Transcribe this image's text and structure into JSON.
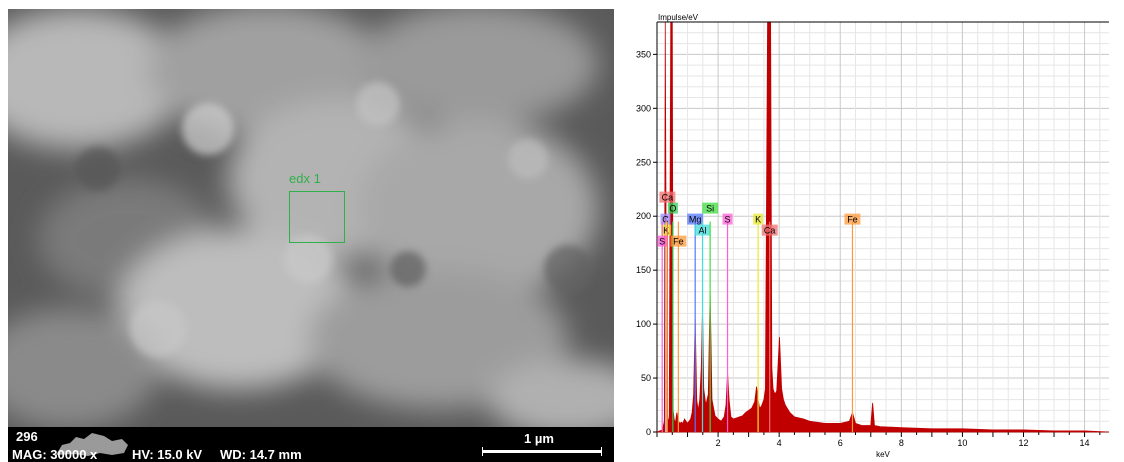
{
  "sem": {
    "roi_label": "edx 1",
    "databar": {
      "id": "296",
      "mag": "MAG: 30000 x",
      "hv": "HV: 15.0 kV",
      "wd": "WD: 14.7 mm",
      "scale": "1 µm"
    }
  },
  "chart_data": {
    "type": "line",
    "title": "",
    "xlabel": "keV",
    "ylabel": "Impulse/eV",
    "xlim": [
      0.0,
      14.8
    ],
    "ylim": [
      0,
      380
    ],
    "x_ticks": [
      2,
      4,
      6,
      8,
      10,
      12,
      14
    ],
    "y_ticks": [
      0,
      50,
      100,
      150,
      200,
      250,
      300,
      350
    ],
    "grid": true,
    "legend": "none",
    "series": [
      {
        "color": "#c00000",
        "x": [
          0.0,
          0.18,
          0.24,
          0.27,
          0.32,
          0.36,
          0.4,
          0.45,
          0.5,
          0.53,
          0.56,
          0.6,
          0.65,
          0.7,
          0.75,
          0.8,
          0.85,
          0.9,
          0.95,
          1.0,
          1.05,
          1.1,
          1.15,
          1.2,
          1.25,
          1.3,
          1.35,
          1.4,
          1.45,
          1.49,
          1.53,
          1.6,
          1.68,
          1.74,
          1.8,
          1.9,
          2.0,
          2.1,
          2.2,
          2.26,
          2.31,
          2.36,
          2.42,
          2.5,
          2.6,
          2.7,
          2.8,
          2.9,
          3.0,
          3.1,
          3.2,
          3.26,
          3.31,
          3.36,
          3.42,
          3.5,
          3.55,
          3.62,
          3.66,
          3.69,
          3.72,
          3.76,
          3.8,
          3.86,
          3.92,
          4.01,
          4.08,
          4.14,
          4.2,
          4.35,
          4.5,
          4.8,
          5.0,
          5.5,
          6.0,
          6.3,
          6.4,
          6.5,
          6.7,
          7.0,
          7.06,
          7.12,
          7.3,
          8.0,
          9.0,
          10.0,
          11.0,
          12.0,
          13.0,
          14.0,
          14.8
        ],
        "y": [
          0,
          2,
          10,
          380,
          22,
          12,
          10,
          380,
          380,
          20,
          12,
          8,
          18,
          10,
          8,
          9,
          8,
          12,
          10,
          8,
          10,
          12,
          18,
          35,
          105,
          30,
          20,
          30,
          60,
          115,
          40,
          25,
          35,
          130,
          30,
          15,
          12,
          10,
          14,
          25,
          55,
          30,
          14,
          12,
          13,
          14,
          15,
          18,
          20,
          22,
          28,
          42,
          30,
          22,
          24,
          30,
          40,
          380,
          380,
          380,
          380,
          60,
          40,
          35,
          38,
          88,
          40,
          30,
          25,
          18,
          14,
          12,
          10,
          8,
          8,
          10,
          18,
          8,
          6,
          6,
          27,
          6,
          5,
          4,
          3,
          3,
          2,
          2,
          1,
          1,
          0
        ]
      }
    ],
    "element_markers": [
      {
        "label": "C",
        "kev": 0.28,
        "color": "#9a8cff"
      },
      {
        "label": "K",
        "kev": 0.3,
        "color": "#e9e930"
      },
      {
        "label": "O",
        "kev": 0.52,
        "color": "#2dcf55"
      },
      {
        "label": "S",
        "kev": 0.17,
        "color": "#ff5dd6"
      },
      {
        "label": "Ca",
        "kev": 0.34,
        "color": "#f07070"
      },
      {
        "label": "Fe",
        "kev": 0.7,
        "color": "#ff9a3a"
      },
      {
        "label": "Mg",
        "kev": 1.25,
        "color": "#5577ff"
      },
      {
        "label": "Al",
        "kev": 1.49,
        "color": "#44dddd"
      },
      {
        "label": "Si",
        "kev": 1.74,
        "color": "#40dd40"
      },
      {
        "label": "S",
        "kev": 2.31,
        "color": "#ff5dd6"
      },
      {
        "label": "K",
        "kev": 3.31,
        "color": "#e9e930"
      },
      {
        "label": "Ca",
        "kev": 3.69,
        "color": "#f07070"
      },
      {
        "label": "Fe",
        "kev": 6.4,
        "color": "#ff9a3a"
      }
    ]
  }
}
